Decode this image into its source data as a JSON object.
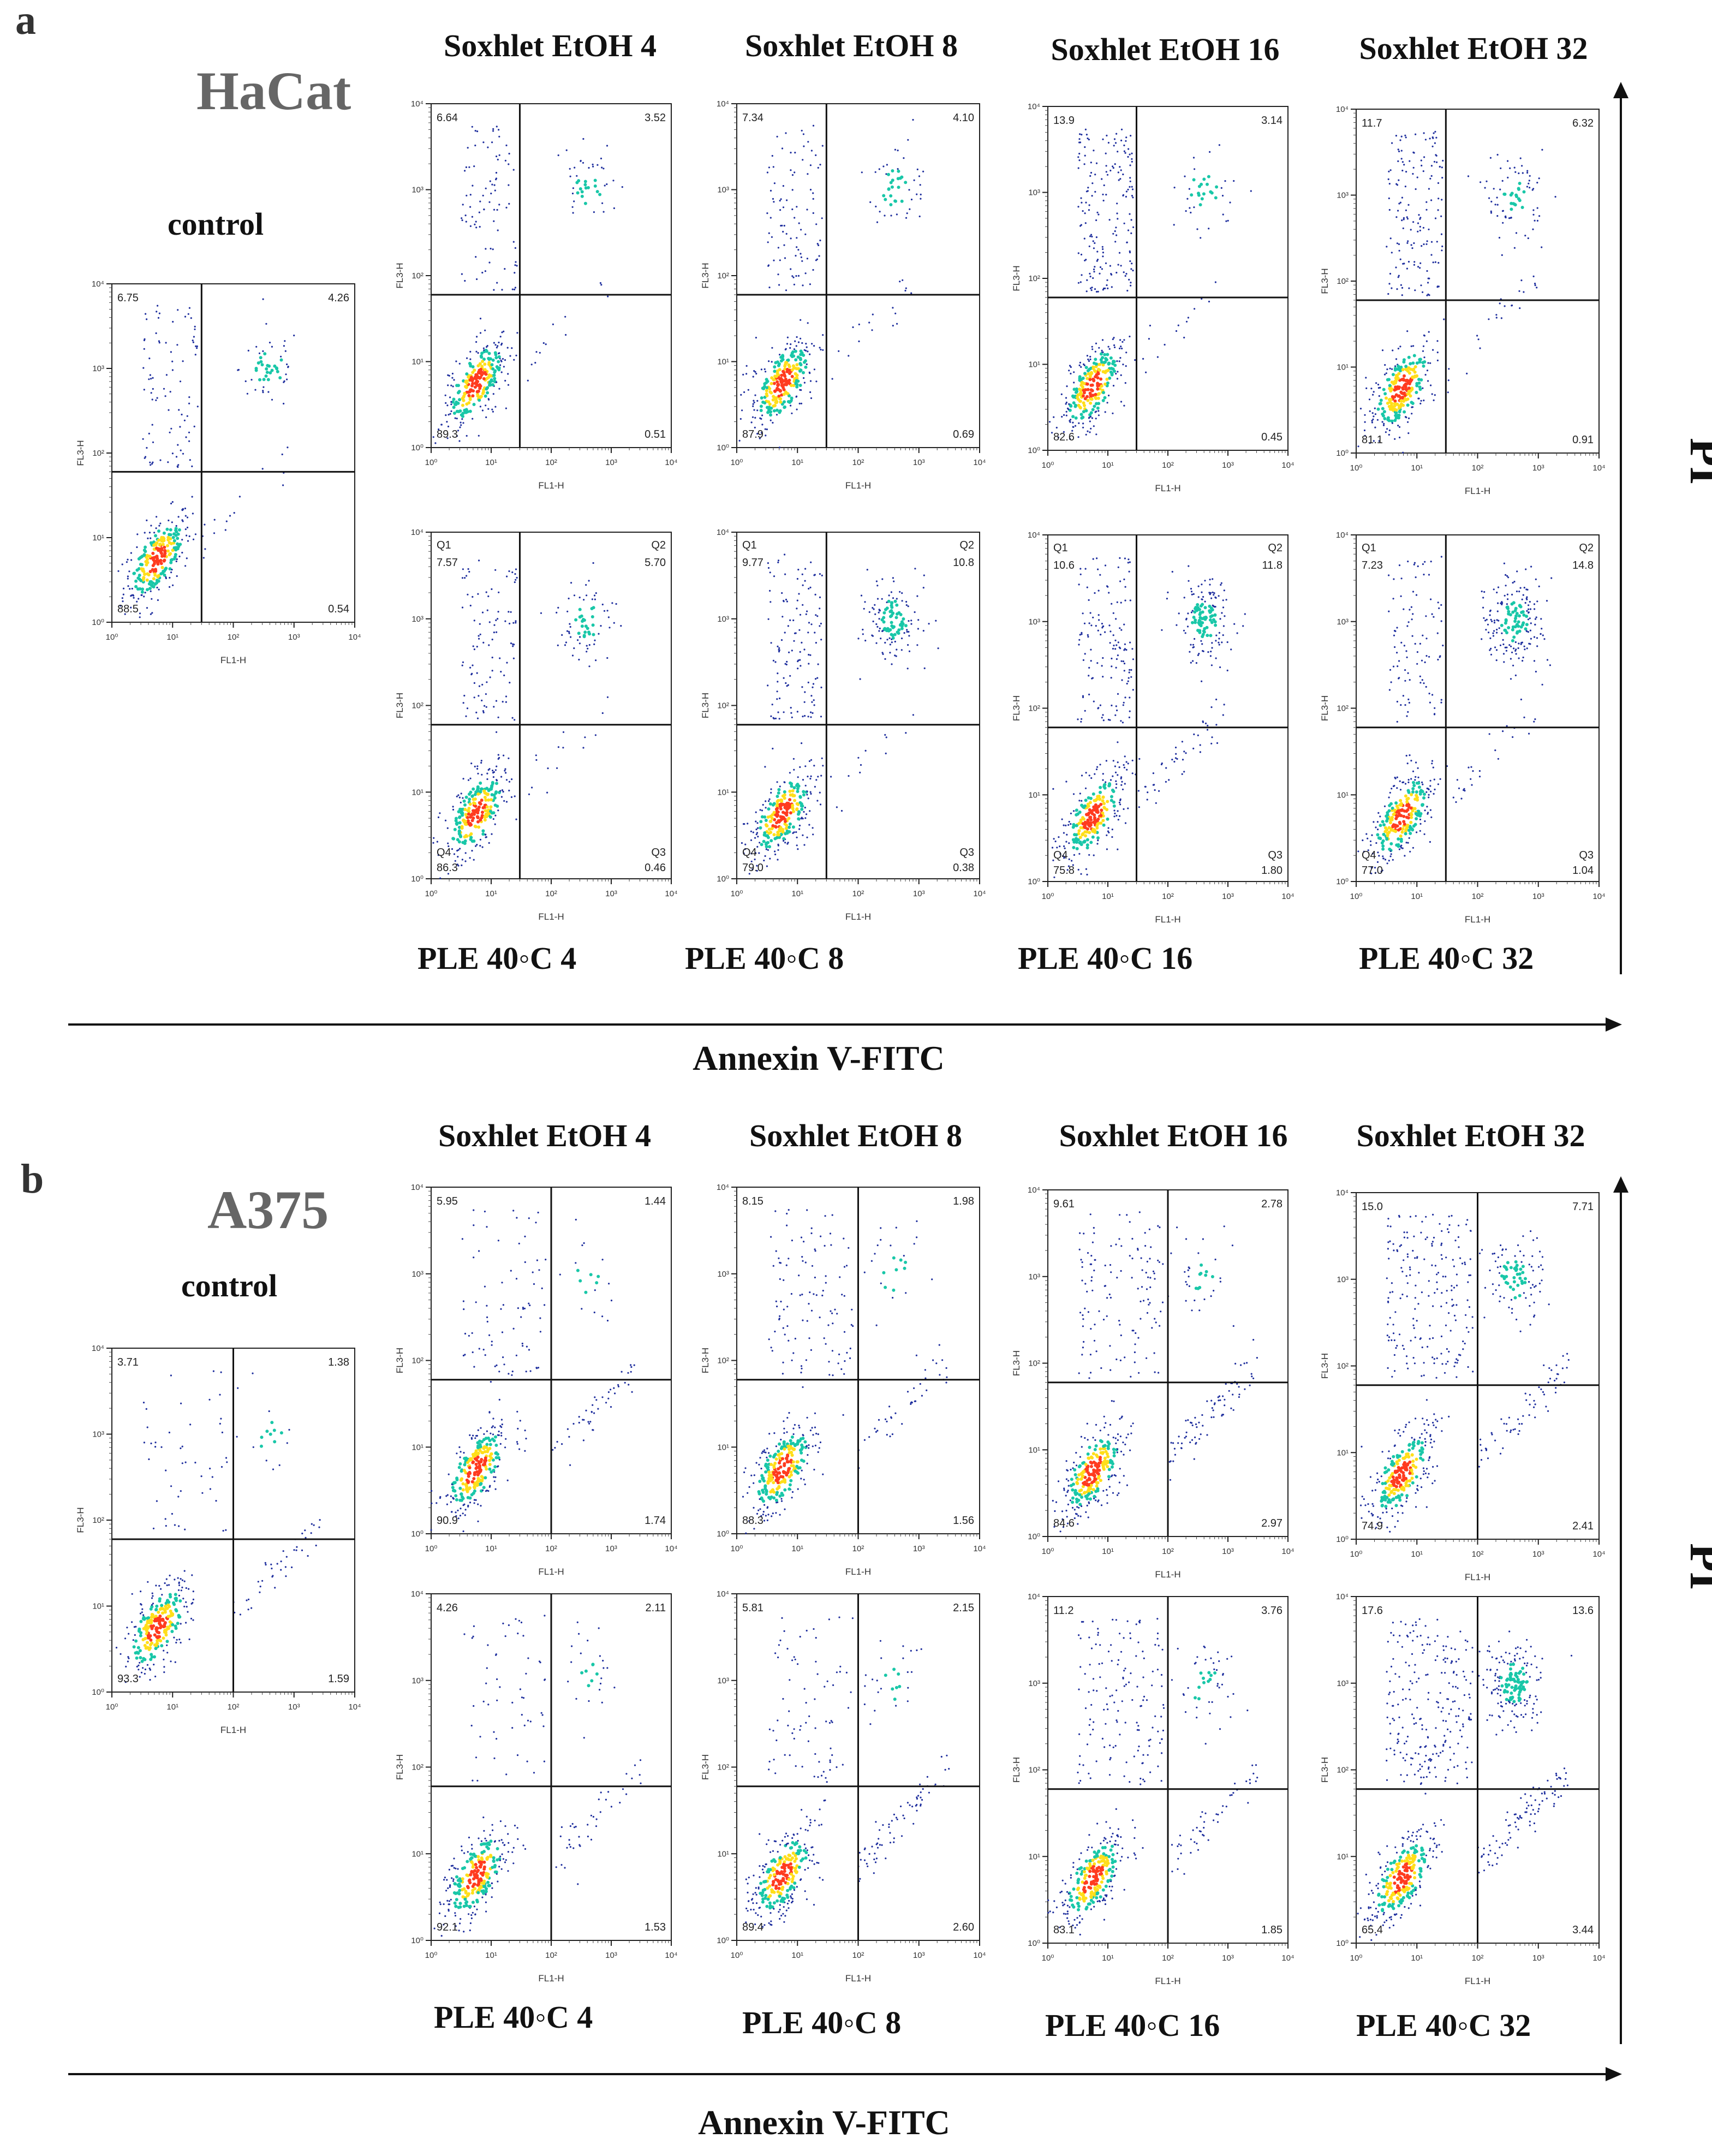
{
  "panels": [
    {
      "letter": "a",
      "cell_line": "HaCat",
      "axis_x_title": "Annexin V-FITC",
      "axis_y_title": "PI"
    },
    {
      "letter": "b",
      "cell_line": "A375",
      "axis_x_title": "Annexin V-FITC",
      "axis_y_title": "PI"
    }
  ],
  "chart_data": [
    {
      "type": "scatter",
      "panel": "a",
      "title": "control",
      "xlabel": "FL1-H",
      "ylabel": "FL3-H",
      "scale": "log",
      "xlim": [
        1,
        10000
      ],
      "ylim": [
        1,
        10000
      ],
      "gate": {
        "x": 30,
        "y": 60
      },
      "quadrants": {
        "UL": "6.75",
        "UR": "4.26",
        "LL": "88.5",
        "LR": "0.54"
      },
      "quadrant_names": null
    },
    {
      "type": "scatter",
      "panel": "a",
      "title": "Soxhlet EtOH 4",
      "xlabel": "FL1-H",
      "ylabel": "FL3-H",
      "scale": "log",
      "xlim": [
        1,
        10000
      ],
      "ylim": [
        1,
        10000
      ],
      "gate": {
        "x": 30,
        "y": 60
      },
      "quadrants": {
        "UL": "6.64",
        "UR": "3.52",
        "LL": "89.3",
        "LR": "0.51"
      },
      "quadrant_names": null
    },
    {
      "type": "scatter",
      "panel": "a",
      "title": "Soxhlet EtOH 8",
      "xlabel": "FL1-H",
      "ylabel": "FL3-H",
      "scale": "log",
      "xlim": [
        1,
        10000
      ],
      "ylim": [
        1,
        10000
      ],
      "gate": {
        "x": 30,
        "y": 60
      },
      "quadrants": {
        "UL": "7.34",
        "UR": "4.10",
        "LL": "87.9",
        "LR": "0.69"
      },
      "quadrant_names": null
    },
    {
      "type": "scatter",
      "panel": "a",
      "title": "Soxhlet EtOH 16",
      "xlabel": "FL1-H",
      "ylabel": "FL3-H",
      "scale": "log",
      "xlim": [
        1,
        10000
      ],
      "ylim": [
        1,
        10000
      ],
      "gate": {
        "x": 30,
        "y": 60
      },
      "quadrants": {
        "UL": "13.9",
        "UR": "3.14",
        "LL": "82.6",
        "LR": "0.45"
      },
      "quadrant_names": null
    },
    {
      "type": "scatter",
      "panel": "a",
      "title": "Soxhlet EtOH 32",
      "xlabel": "FL1-H",
      "ylabel": "FL3-H",
      "scale": "log",
      "xlim": [
        1,
        10000
      ],
      "ylim": [
        1,
        10000
      ],
      "gate": {
        "x": 30,
        "y": 60
      },
      "quadrants": {
        "UL": "11.7",
        "UR": "6.32",
        "LL": "81.1",
        "LR": "0.91"
      },
      "quadrant_names": null
    },
    {
      "type": "scatter",
      "panel": "a",
      "title": "PLE 40◦C 4",
      "xlabel": "FL1-H",
      "ylabel": "FL3-H",
      "scale": "log",
      "xlim": [
        1,
        10000
      ],
      "ylim": [
        1,
        10000
      ],
      "gate": {
        "x": 30,
        "y": 60
      },
      "quadrants": {
        "UL": "7.57",
        "UR": "5.70",
        "LL": "86.3",
        "LR": "0.46"
      },
      "quadrant_names": {
        "UL": "Q1",
        "UR": "Q2",
        "LL": "Q4",
        "LR": "Q3"
      }
    },
    {
      "type": "scatter",
      "panel": "a",
      "title": "PLE 40◦C 8",
      "xlabel": "FL1-H",
      "ylabel": "FL3-H",
      "scale": "log",
      "xlim": [
        1,
        10000
      ],
      "ylim": [
        1,
        10000
      ],
      "gate": {
        "x": 30,
        "y": 60
      },
      "quadrants": {
        "UL": "9.77",
        "UR": "10.8",
        "LL": "79.0",
        "LR": "0.38"
      },
      "quadrant_names": {
        "UL": "Q1",
        "UR": "Q2",
        "LL": "Q4",
        "LR": "Q3"
      }
    },
    {
      "type": "scatter",
      "panel": "a",
      "title": "PLE 40◦C 16",
      "xlabel": "FL1-H",
      "ylabel": "FL3-H",
      "scale": "log",
      "xlim": [
        1,
        10000
      ],
      "ylim": [
        1,
        10000
      ],
      "gate": {
        "x": 30,
        "y": 60
      },
      "quadrants": {
        "UL": "10.6",
        "UR": "11.8",
        "LL": "75.8",
        "LR": "1.80"
      },
      "quadrant_names": {
        "UL": "Q1",
        "UR": "Q2",
        "LL": "Q4",
        "LR": "Q3"
      }
    },
    {
      "type": "scatter",
      "panel": "a",
      "title": "PLE 40◦C 32",
      "xlabel": "FL1-H",
      "ylabel": "FL3-H",
      "scale": "log",
      "xlim": [
        1,
        10000
      ],
      "ylim": [
        1,
        10000
      ],
      "gate": {
        "x": 30,
        "y": 60
      },
      "quadrants": {
        "UL": "7.23",
        "UR": "14.8",
        "LL": "77.0",
        "LR": "1.04"
      },
      "quadrant_names": {
        "UL": "Q1",
        "UR": "Q2",
        "LL": "Q4",
        "LR": "Q3"
      }
    },
    {
      "type": "scatter",
      "panel": "b",
      "title": "control",
      "xlabel": "FL1-H",
      "ylabel": "FL3-H",
      "scale": "log",
      "xlim": [
        1,
        10000
      ],
      "ylim": [
        1,
        10000
      ],
      "gate": {
        "x": 100,
        "y": 60
      },
      "quadrants": {
        "UL": "3.71",
        "UR": "1.38",
        "LL": "93.3",
        "LR": "1.59"
      },
      "quadrant_names": null
    },
    {
      "type": "scatter",
      "panel": "b",
      "title": "Soxhlet EtOH 4",
      "xlabel": "FL1-H",
      "ylabel": "FL3-H",
      "scale": "log",
      "xlim": [
        1,
        10000
      ],
      "ylim": [
        1,
        10000
      ],
      "gate": {
        "x": 100,
        "y": 60
      },
      "quadrants": {
        "UL": "5.95",
        "UR": "1.44",
        "LL": "90.9",
        "LR": "1.74"
      },
      "quadrant_names": null
    },
    {
      "type": "scatter",
      "panel": "b",
      "title": "Soxhlet EtOH 8",
      "xlabel": "FL1-H",
      "ylabel": "FL3-H",
      "scale": "log",
      "xlim": [
        1,
        10000
      ],
      "ylim": [
        1,
        10000
      ],
      "gate": {
        "x": 100,
        "y": 60
      },
      "quadrants": {
        "UL": "8.15",
        "UR": "1.98",
        "LL": "88.3",
        "LR": "1.56"
      },
      "quadrant_names": null
    },
    {
      "type": "scatter",
      "panel": "b",
      "title": "Soxhlet EtOH 16",
      "xlabel": "FL1-H",
      "ylabel": "FL3-H",
      "scale": "log",
      "xlim": [
        1,
        10000
      ],
      "ylim": [
        1,
        10000
      ],
      "gate": {
        "x": 100,
        "y": 60
      },
      "quadrants": {
        "UL": "9.61",
        "UR": "2.78",
        "LL": "84.6",
        "LR": "2.97"
      },
      "quadrant_names": null
    },
    {
      "type": "scatter",
      "panel": "b",
      "title": "Soxhlet EtOH 32",
      "xlabel": "FL1-H",
      "ylabel": "FL3-H",
      "scale": "log",
      "xlim": [
        1,
        10000
      ],
      "ylim": [
        1,
        10000
      ],
      "gate": {
        "x": 100,
        "y": 60
      },
      "quadrants": {
        "UL": "15.0",
        "UR": "7.71",
        "LL": "74.9",
        "LR": "2.41"
      },
      "quadrant_names": null
    },
    {
      "type": "scatter",
      "panel": "b",
      "title": "PLE 40◦C 4",
      "xlabel": "FL1-H",
      "ylabel": "FL3-H",
      "scale": "log",
      "xlim": [
        1,
        10000
      ],
      "ylim": [
        1,
        10000
      ],
      "gate": {
        "x": 100,
        "y": 60
      },
      "quadrants": {
        "UL": "4.26",
        "UR": "2.11",
        "LL": "92.1",
        "LR": "1.53"
      },
      "quadrant_names": null
    },
    {
      "type": "scatter",
      "panel": "b",
      "title": "PLE 40◦C 8",
      "xlabel": "FL1-H",
      "ylabel": "FL3-H",
      "scale": "log",
      "xlim": [
        1,
        10000
      ],
      "ylim": [
        1,
        10000
      ],
      "gate": {
        "x": 100,
        "y": 60
      },
      "quadrants": {
        "UL": "5.81",
        "UR": "2.15",
        "LL": "89.4",
        "LR": "2.60"
      },
      "quadrant_names": null
    },
    {
      "type": "scatter",
      "panel": "b",
      "title": "PLE 40◦C 16",
      "xlabel": "FL1-H",
      "ylabel": "FL3-H",
      "scale": "log",
      "xlim": [
        1,
        10000
      ],
      "ylim": [
        1,
        10000
      ],
      "gate": {
        "x": 100,
        "y": 60
      },
      "quadrants": {
        "UL": "11.2",
        "UR": "3.76",
        "LL": "83.1",
        "LR": "1.85"
      },
      "quadrant_names": null
    },
    {
      "type": "scatter",
      "panel": "b",
      "title": "PLE 40◦C 32",
      "xlabel": "FL1-H",
      "ylabel": "FL3-H",
      "scale": "log",
      "xlim": [
        1,
        10000
      ],
      "ylim": [
        1,
        10000
      ],
      "gate": {
        "x": 100,
        "y": 60
      },
      "quadrants": {
        "UL": "17.6",
        "UR": "13.6",
        "LL": "65.4",
        "LR": "3.44"
      },
      "quadrant_names": null
    }
  ],
  "colors": {
    "density_low": "#1f2f9e",
    "density_mid": "#19c7a8",
    "density_high": "#ffde1a",
    "density_peak": "#ff3b1f",
    "gate_line": "#111111",
    "cell_line_label": "#666666"
  }
}
